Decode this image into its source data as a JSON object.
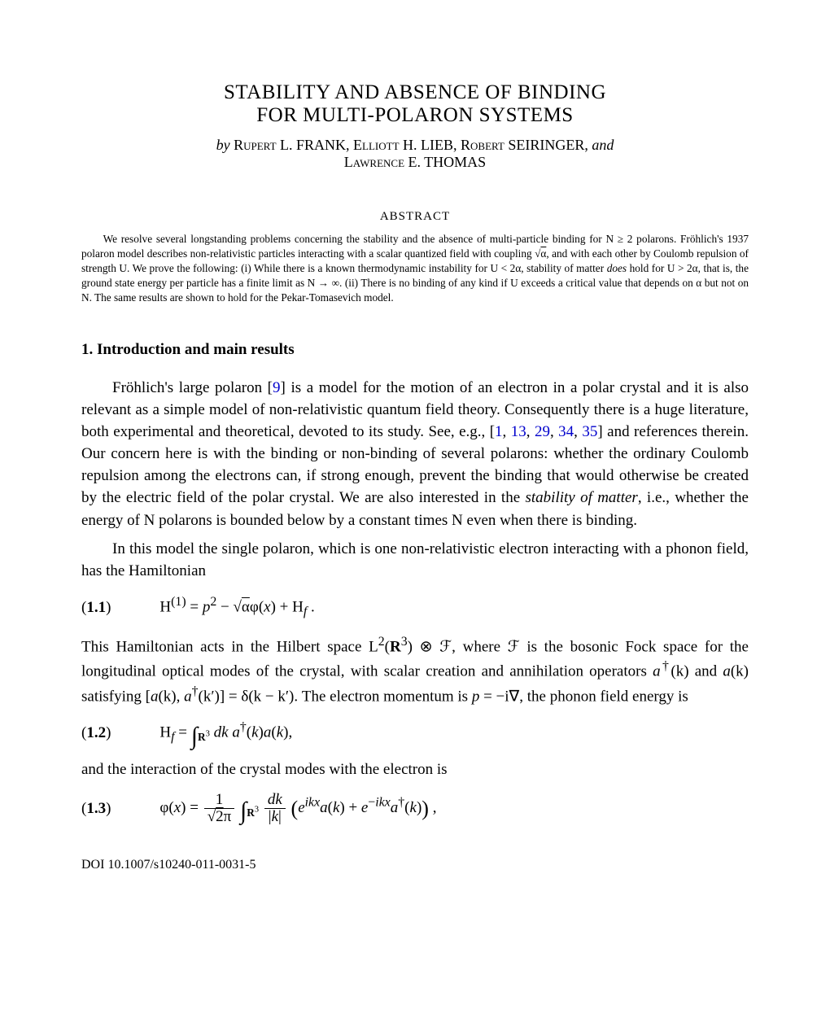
{
  "title_line1": "STABILITY AND ABSENCE OF BINDING",
  "title_line2": "FOR MULTI-POLARON SYSTEMS",
  "byline": {
    "by": "by",
    "a1_first": "R",
    "a1_rest": "upert",
    "a1_mid": " L. FRANK, ",
    "a2_first": "E",
    "a2_rest": "lliott",
    "a2_mid": " H. LIEB, ",
    "a3_first": "R",
    "a3_rest": "obert",
    "a3_mid": " SEIRINGER, ",
    "and": "and",
    "a4_first": "L",
    "a4_rest": "awrence",
    "a4_mid": " E. THOMAS"
  },
  "abstract_head": "ABSTRACT",
  "abstract_text": "We resolve several longstanding problems concerning the stability and the absence of multi-particle binding for N ≥ 2 polarons. Fröhlich's 1937 polaron model describes non-relativistic particles interacting with a scalar quantized field with coupling √α, and with each other by Coulomb repulsion of strength U. We prove the following: (i) While there is a known thermodynamic instability for U < 2α, stability of matter does hold for U > 2α, that is, the ground state energy per particle has a finite limit as N → ∞. (ii) There is no binding of any kind if U exceeds a critical value that depends on α but not on N. The same results are shown to hold for the Pekar-Tomasevich model.",
  "section1_head": "1.  Introduction and main results",
  "para1_pre": "Fröhlich's large polaron [",
  "ref9": "9",
  "para1_mid1": "] is a model for the motion of an electron in a polar crystal and it is also relevant as a simple model of non-relativistic quantum field theory. Consequently there is a huge literature, both experimental and theoretical, devoted to its study. See, e.g., [",
  "ref1": "1",
  "ref13": "13",
  "ref29": "29",
  "ref34": "34",
  "ref35": "35",
  "comma": ", ",
  "para1_mid2": "] and references therein. Our concern here is with the binding or non-binding of several polarons: whether the ordinary Coulomb repulsion among the electrons can, if strong enough, prevent the binding that would otherwise be created by the electric field of the polar crystal. We are also interested in the ",
  "para1_em": "stability of matter",
  "para1_end": ", i.e., whether the energy of N polarons is bounded below by a constant times N even when there is binding.",
  "para2": "In this model the single polaron, which is one non-relativistic electron interacting with a phonon field, has the Hamiltonian",
  "eq1_num": "1.1",
  "eq1_body_html": "H<sup>(1)</sup> = <i>p</i><sup>2</sup> − √<span style=\"text-decoration:overline\">α</span> φ(<i>x</i>) + H<sub><i>f</i></sub> .",
  "para3_a": "This Hamiltonian acts in the Hilbert space L",
  "para3_b": "(",
  "para3_c": ") ⊗ ℱ, where ℱ is the bosonic Fock space for the longitudinal optical modes of the crystal, with scalar creation and annihilation operators ",
  "para3_d": "(k) and ",
  "para3_e": "(k) satisfying [",
  "para3_f": "(k), ",
  "para3_g": "(k′)] = δ(k − k′). The electron momentum is ",
  "para3_h": " = −i∇, the phonon field energy is",
  "eq2_num": "1.2",
  "para4": "and the interaction of the crystal modes with the electron is",
  "eq3_num": "1.3",
  "doi": "DOI 10.1007/s10240-011-0031-5",
  "colors": {
    "ref": "#0000cc",
    "text": "#000000",
    "bg": "#ffffff"
  }
}
